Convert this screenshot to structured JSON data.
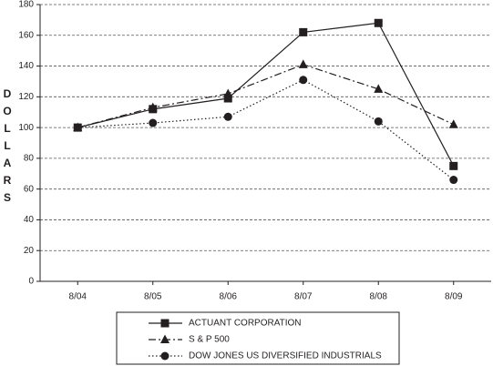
{
  "chart_data": {
    "type": "line",
    "y_label": "DOLLARS",
    "categories": [
      "8/04",
      "8/05",
      "8/06",
      "8/07",
      "8/08",
      "8/09"
    ],
    "series": [
      {
        "name": "ACTUANT CORPORATION",
        "color": "#231f20",
        "dash": "solid",
        "marker": "square",
        "values": [
          100,
          112,
          119,
          162,
          168,
          75
        ]
      },
      {
        "name": "S & P 500",
        "color": "#231f20",
        "dash": "dashdot",
        "marker": "triangle",
        "values": [
          100,
          113,
          122,
          141,
          125,
          102
        ]
      },
      {
        "name": "DOW JONES US DIVERSIFIED INDUSTRIALS",
        "color": "#231f20",
        "dash": "dotted",
        "marker": "circle",
        "values": [
          100,
          103,
          107,
          131,
          104,
          66
        ]
      }
    ],
    "ylim": [
      0,
      180
    ],
    "yticks": [
      0,
      20,
      40,
      60,
      80,
      100,
      120,
      140,
      160,
      180
    ],
    "grid": true,
    "legend": "bottom"
  }
}
